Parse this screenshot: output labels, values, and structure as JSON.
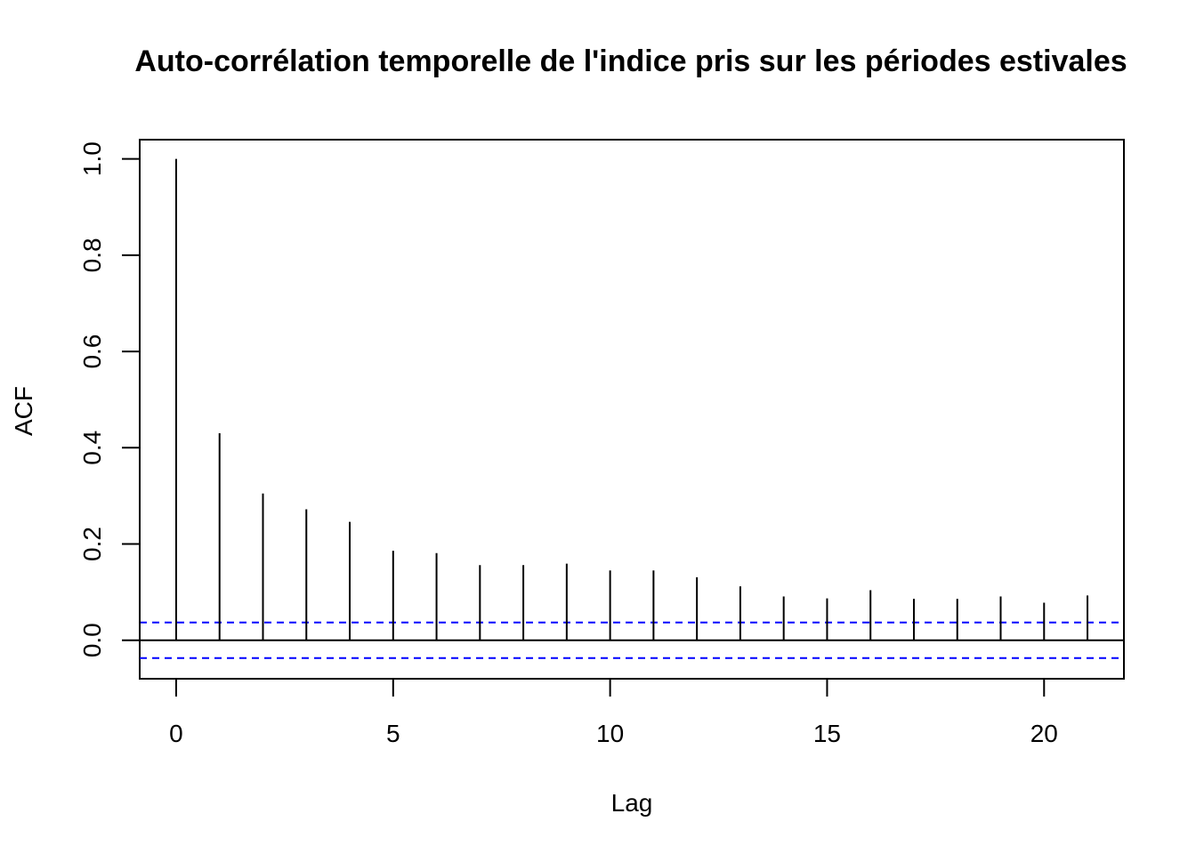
{
  "chart_data": {
    "type": "bar",
    "title": "Auto-corrélation temporelle de l'indice pris sur les périodes estivales",
    "xlabel": "Lag",
    "ylabel": "ACF",
    "x": [
      0,
      1,
      2,
      3,
      4,
      5,
      6,
      7,
      8,
      9,
      10,
      11,
      12,
      13,
      14,
      15,
      16,
      17,
      18,
      19,
      20,
      21
    ],
    "values": [
      1.0,
      0.43,
      0.305,
      0.272,
      0.246,
      0.186,
      0.181,
      0.156,
      0.156,
      0.159,
      0.145,
      0.145,
      0.131,
      0.112,
      0.091,
      0.087,
      0.104,
      0.086,
      0.086,
      0.091,
      0.078,
      0.093
    ],
    "confidence_band": 0.037,
    "confidence_color": "#0000ff",
    "bar_color": "#000000",
    "xlim": [
      -0.84,
      21.84
    ],
    "ylim": [
      -0.08,
      1.04
    ],
    "x_ticks": [
      0,
      5,
      10,
      15,
      20
    ],
    "x_tick_labels": [
      "0",
      "5",
      "10",
      "15",
      "20"
    ],
    "y_ticks": [
      0.0,
      0.2,
      0.4,
      0.6,
      0.8,
      1.0
    ],
    "y_tick_labels": [
      "0.0",
      "0.2",
      "0.4",
      "0.6",
      "0.8",
      "1.0"
    ],
    "grid": false
  }
}
